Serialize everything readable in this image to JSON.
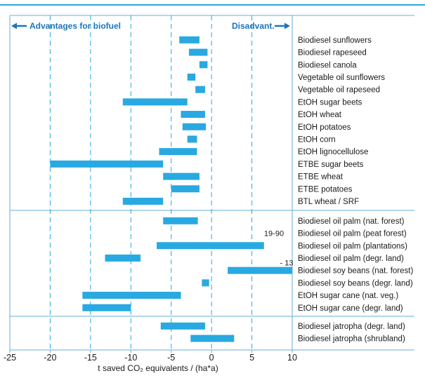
{
  "chart_data": {
    "type": "bar",
    "orientation": "horizontal-range",
    "xlabel": "t saved CO₂ equivalents / (ha*a)",
    "xlim": [
      -25,
      10
    ],
    "xticks": [
      -25,
      -20,
      -15,
      -10,
      -5,
      0,
      5,
      10
    ],
    "grid": "vertical dashed",
    "advantages_label": "Advantages for biofuel",
    "disadvantages_label": "Disadvant.",
    "bar_color": "#29a9e1",
    "frame_color": "#6aaed6",
    "groups": [
      {
        "items": [
          {
            "label": "Biodiesel sunflowers",
            "min": -4,
            "max": -1.5
          },
          {
            "label": "Biodiesel rapeseed",
            "min": -2.8,
            "max": -0.5
          },
          {
            "label": "Biodiesel canola",
            "min": -1.5,
            "max": -0.5
          },
          {
            "label": "Vegetable oil sunflowers",
            "min": -3,
            "max": -2
          },
          {
            "label": "Vegetable oil rapeseed",
            "min": -2,
            "max": -0.8
          },
          {
            "label": "EtOH sugar beets",
            "min": -11,
            "max": -3
          },
          {
            "label": "EtOH wheat",
            "min": -3.8,
            "max": -0.8
          },
          {
            "label": "EtOH potatoes",
            "min": -3.6,
            "max": -0.7
          },
          {
            "label": "EtOH corn",
            "min": -3,
            "max": -1.8
          },
          {
            "label": "EtOH lignocellulose",
            "min": -6.5,
            "max": -1.8
          },
          {
            "label": "ETBE sugar beets",
            "min": -20,
            "max": -6
          },
          {
            "label": "ETBE wheat",
            "min": -6,
            "max": -1.5
          },
          {
            "label": "ETBE potatoes",
            "min": -5,
            "max": -1.5
          },
          {
            "label": "BTL wheat / SRF",
            "min": -11,
            "max": -6
          }
        ]
      },
      {
        "items": [
          {
            "label": "Biodiesel oil palm (nat. forest)",
            "min": -6,
            "max": -1.7
          },
          {
            "label": "Biodiesel oil palm (peat forest)",
            "min": null,
            "max": null,
            "annotation": "19-90"
          },
          {
            "label": "Biodiesel oil palm (plantations)",
            "min": -6.8,
            "max": 6.5
          },
          {
            "label": "Biodiesel oil palm (degr. land)",
            "min": -13.2,
            "max": -8.8
          },
          {
            "label": "Biodiesel soy beans (nat. forest)",
            "min": 2,
            "max": 10,
            "annotation": "- 13"
          },
          {
            "label": "Biodiesel soy beans (degr. land)",
            "min": -1.2,
            "max": -0.3
          },
          {
            "label": "EtOH sugar cane (nat. veg.)",
            "min": -16,
            "max": -3.8
          },
          {
            "label": "EtOH sugar cane (degr. land)",
            "min": -16,
            "max": -10
          }
        ]
      },
      {
        "items": [
          {
            "label": "Biodiesel jatropha (degr. land)",
            "min": -6.3,
            "max": -0.8
          },
          {
            "label": "Biodiesel jatropha (shrubland)",
            "min": -2.6,
            "max": 2.8
          }
        ]
      }
    ]
  }
}
